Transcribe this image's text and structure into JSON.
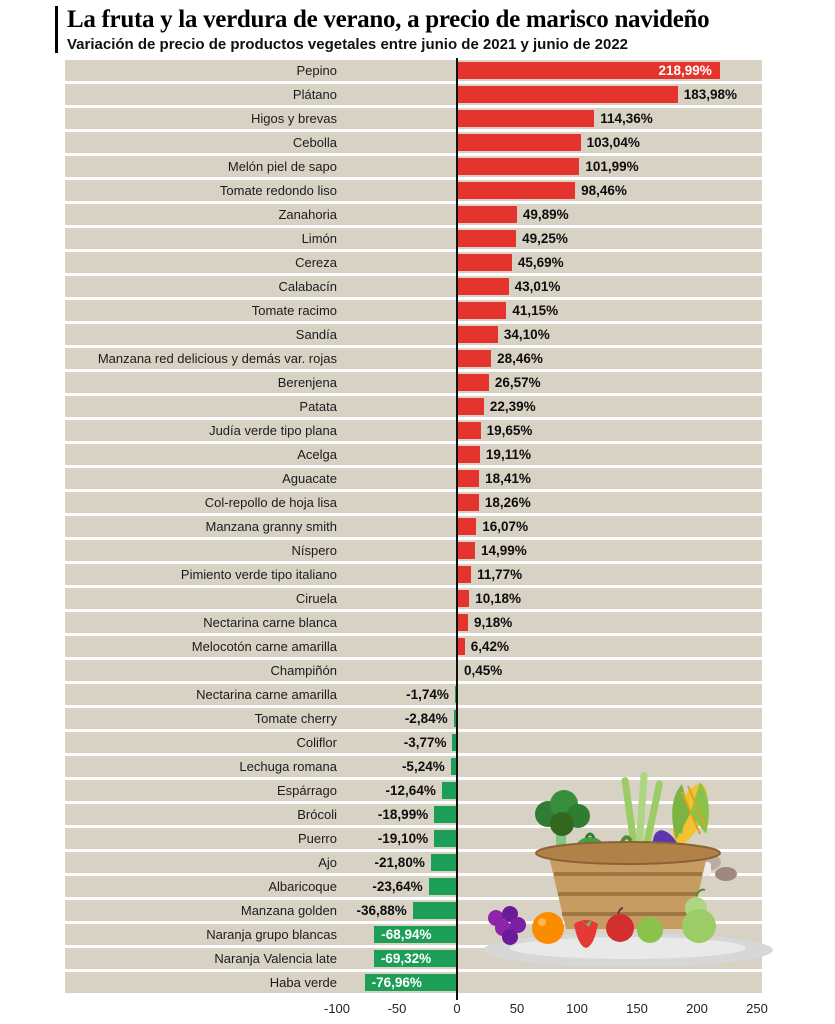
{
  "header": {
    "title": "La fruta y la verdura de verano, a precio de marisco navideño",
    "subtitle": "Variación de precio de productos vegetales entre junio de 2021 y junio de 2022"
  },
  "chart_data": {
    "type": "bar",
    "orientation": "horizontal",
    "title": "La fruta y la verdura de verano, a precio de marisco navideño",
    "subtitle": "Variación de precio de productos vegetales entre junio de 2021 y junio de 2022",
    "xlim": [
      -100,
      250
    ],
    "x_ticks": [
      "-100",
      "-50",
      "0",
      "50",
      "100",
      "150",
      "200",
      "250"
    ],
    "categories": [
      "Pepino",
      "Plátano",
      "Higos y brevas",
      "Cebolla",
      "Melón piel de sapo",
      "Tomate redondo liso",
      "Zanahoria",
      "Limón",
      "Cereza",
      "Calabacín",
      "Tomate racimo",
      "Sandía",
      "Manzana red delicious y demás var. rojas",
      "Berenjena",
      "Patata",
      "Judía verde tipo plana",
      "Acelga",
      "Aguacate",
      "Col-repollo de hoja lisa",
      "Manzana granny smith",
      "Níspero",
      "Pimiento verde tipo italiano",
      "Ciruela",
      "Nectarina carne blanca",
      "Melocotón carne amarilla",
      "Champiñón",
      "Nectarina carne amarilla",
      "Tomate cherry",
      "Coliflor",
      "Lechuga romana",
      "Espárrago",
      "Brócoli",
      "Puerro",
      "Ajo",
      "Albaricoque",
      "Manzana golden",
      "Naranja grupo blancas",
      "Naranja Valencia late",
      "Haba verde"
    ],
    "values": [
      218.99,
      183.98,
      114.36,
      103.04,
      101.99,
      98.46,
      49.89,
      49.25,
      45.69,
      43.01,
      41.15,
      34.1,
      28.46,
      26.57,
      22.39,
      19.65,
      19.11,
      18.41,
      18.26,
      16.07,
      14.99,
      11.77,
      10.18,
      9.18,
      6.42,
      0.45,
      -1.74,
      -2.84,
      -3.77,
      -5.24,
      -12.64,
      -18.99,
      -19.1,
      -21.8,
      -23.64,
      -36.88,
      -68.94,
      -69.32,
      -76.96
    ],
    "value_labels": [
      "218,99%",
      "183,98%",
      "114,36%",
      "103,04%",
      "101,99%",
      "98,46%",
      "49,89%",
      "49,25%",
      "45,69%",
      "43,01%",
      "41,15%",
      "34,10%",
      "28,46%",
      "26,57%",
      "22,39%",
      "19,65%",
      "19,11%",
      "18,41%",
      "18,26%",
      "16,07%",
      "14,99%",
      "11,77%",
      "10,18%",
      "9,18%",
      "6,42%",
      "0,45%",
      "-1,74%",
      "-2,84%",
      "-3,77%",
      "-5,24%",
      "-12,64%",
      "-18,99%",
      "-19,10%",
      "-21,80%",
      "-23,64%",
      "-36,88%",
      "-68,94%",
      "-69,32%",
      "-76,96%"
    ],
    "inside_label_indices": [
      0,
      36,
      37,
      38
    ],
    "colors": {
      "positive": "#e5332e",
      "negative": "#1d9e56",
      "band": "#d8d2c5",
      "axis": "#111111",
      "value_text": "#0d0d0d",
      "inside_value_text": "#ffffff"
    },
    "legend": "none",
    "grid": "off"
  },
  "illustration": {
    "name": "fruit-basket"
  }
}
